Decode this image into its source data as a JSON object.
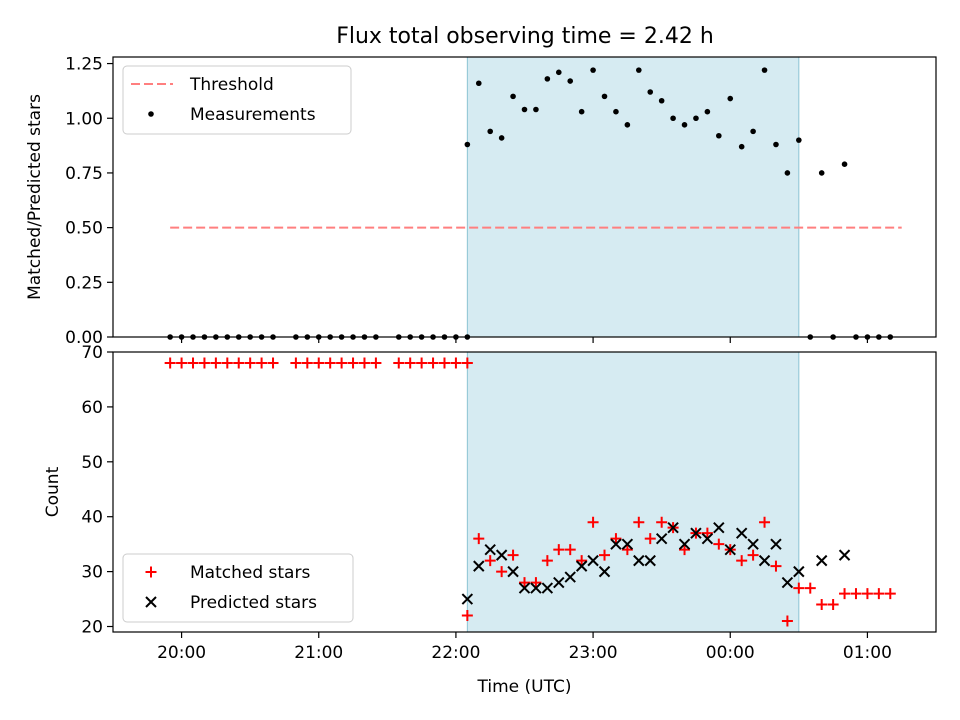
{
  "title": "Flux total observing time = 2.42 h",
  "chart_data": [
    {
      "type": "scatter",
      "panel": "top",
      "title": "Flux total observing time = 2.42 h",
      "ylabel": "Matched/Predicted stars",
      "ylim": [
        0,
        1.28
      ],
      "yticks": [
        0,
        0.25,
        0.5,
        0.75,
        1.0,
        1.25
      ],
      "yticklabels": [
        "0.00",
        "0.25",
        "0.50",
        "0.75",
        "1.00",
        "1.25"
      ],
      "xticks": [
        20,
        21,
        22,
        23,
        24,
        25
      ],
      "shaded_span": [
        "22:05",
        "00:30"
      ],
      "legend": {
        "placement": "upper left",
        "entries": [
          "Threshold",
          "Measurements"
        ]
      },
      "series": [
        {
          "name": "Threshold",
          "kind": "line",
          "style": "dashed",
          "color": "#ff7f7f",
          "x": [
            "19:55",
            "01:15"
          ],
          "y": [
            0.5,
            0.5
          ]
        },
        {
          "name": "Measurements",
          "kind": "scatter",
          "color": "#000000",
          "x": [
            "19:55",
            "20:00",
            "20:05",
            "20:10",
            "20:15",
            "20:20",
            "20:25",
            "20:30",
            "20:35",
            "20:40",
            "20:50",
            "20:55",
            "21:00",
            "21:05",
            "21:10",
            "21:15",
            "21:20",
            "21:25",
            "21:35",
            "21:40",
            "21:45",
            "21:50",
            "21:55",
            "22:00",
            "22:05",
            "22:05",
            "22:10",
            "22:15",
            "22:20",
            "22:25",
            "22:30",
            "22:35",
            "22:40",
            "22:45",
            "22:50",
            "22:55",
            "23:00",
            "23:05",
            "23:10",
            "23:15",
            "23:20",
            "23:25",
            "23:30",
            "23:35",
            "23:40",
            "23:45",
            "23:50",
            "23:55",
            "00:00",
            "00:05",
            "00:10",
            "00:15",
            "00:20",
            "00:25",
            "00:30",
            "00:35",
            "00:40",
            "00:45",
            "00:50",
            "00:55",
            "01:00",
            "01:05",
            "01:10"
          ],
          "y": [
            0,
            0,
            0,
            0,
            0,
            0,
            0,
            0,
            0,
            0,
            0,
            0,
            0,
            0,
            0,
            0,
            0,
            0,
            0,
            0,
            0,
            0,
            0,
            0,
            0,
            0.88,
            1.16,
            0.94,
            0.91,
            1.1,
            1.04,
            1.04,
            1.18,
            1.21,
            1.17,
            1.03,
            1.22,
            1.1,
            1.03,
            0.97,
            1.22,
            1.12,
            1.08,
            1.0,
            0.97,
            1.0,
            1.03,
            0.92,
            1.09,
            0.87,
            0.94,
            1.22,
            0.88,
            0.75,
            0.9,
            0,
            0.75,
            0,
            0.79,
            0,
            0,
            0,
            0
          ]
        }
      ]
    },
    {
      "type": "scatter",
      "panel": "bottom",
      "xlabel": "Time (UTC)",
      "ylabel": "Count",
      "ylim": [
        19,
        70
      ],
      "yticks": [
        20,
        30,
        40,
        50,
        60,
        70
      ],
      "yticklabels": [
        "20",
        "30",
        "40",
        "50",
        "60",
        "70"
      ],
      "xticks": [
        20,
        21,
        22,
        23,
        24,
        25
      ],
      "xticklabels": [
        "20:00",
        "21:00",
        "22:00",
        "23:00",
        "00:00",
        "01:00"
      ],
      "shaded_span": [
        "22:05",
        "00:30"
      ],
      "legend": {
        "placement": "lower left",
        "entries": [
          "Matched stars",
          "Predicted stars"
        ]
      },
      "series": [
        {
          "name": "Matched stars",
          "marker": "+",
          "color": "#ff0000",
          "x": [
            "19:55",
            "20:00",
            "20:05",
            "20:10",
            "20:15",
            "20:20",
            "20:25",
            "20:30",
            "20:35",
            "20:40",
            "20:50",
            "20:55",
            "21:00",
            "21:05",
            "21:10",
            "21:15",
            "21:20",
            "21:25",
            "21:35",
            "21:40",
            "21:45",
            "21:50",
            "21:55",
            "22:00",
            "22:05",
            "22:05",
            "22:10",
            "22:15",
            "22:20",
            "22:25",
            "22:30",
            "22:35",
            "22:40",
            "22:45",
            "22:50",
            "22:55",
            "23:00",
            "23:05",
            "23:10",
            "23:15",
            "23:20",
            "23:25",
            "23:30",
            "23:35",
            "23:40",
            "23:45",
            "23:50",
            "23:55",
            "00:00",
            "00:05",
            "00:10",
            "00:15",
            "00:20",
            "00:25",
            "00:30",
            "00:35",
            "00:40",
            "00:45",
            "00:50",
            "00:55",
            "01:00",
            "01:05",
            "01:10"
          ],
          "y": [
            68,
            68,
            68,
            68,
            68,
            68,
            68,
            68,
            68,
            68,
            68,
            68,
            68,
            68,
            68,
            68,
            68,
            68,
            68,
            68,
            68,
            68,
            68,
            68,
            68,
            22,
            36,
            32,
            30,
            33,
            28,
            28,
            32,
            34,
            34,
            32,
            39,
            33,
            36,
            34,
            39,
            36,
            39,
            38,
            34,
            37,
            37,
            35,
            34,
            32,
            33,
            39,
            31,
            21,
            27,
            27,
            24,
            24,
            26,
            26,
            26,
            26,
            26
          ]
        },
        {
          "name": "Predicted stars",
          "marker": "x",
          "color": "#000000",
          "x": [
            "22:05",
            "22:10",
            "22:15",
            "22:20",
            "22:25",
            "22:30",
            "22:35",
            "22:40",
            "22:45",
            "22:50",
            "22:55",
            "23:00",
            "23:05",
            "23:10",
            "23:15",
            "23:20",
            "23:25",
            "23:30",
            "23:35",
            "23:40",
            "23:45",
            "23:50",
            "23:55",
            "00:00",
            "00:05",
            "00:10",
            "00:15",
            "00:20",
            "00:25",
            "00:30",
            "00:40",
            "00:50"
          ],
          "y": [
            25,
            31,
            34,
            33,
            30,
            27,
            27,
            27,
            28,
            29,
            31,
            32,
            30,
            35,
            35,
            32,
            32,
            36,
            38,
            35,
            37,
            36,
            38,
            34,
            37,
            35,
            32,
            35,
            28,
            30,
            32,
            33
          ]
        }
      ]
    }
  ]
}
